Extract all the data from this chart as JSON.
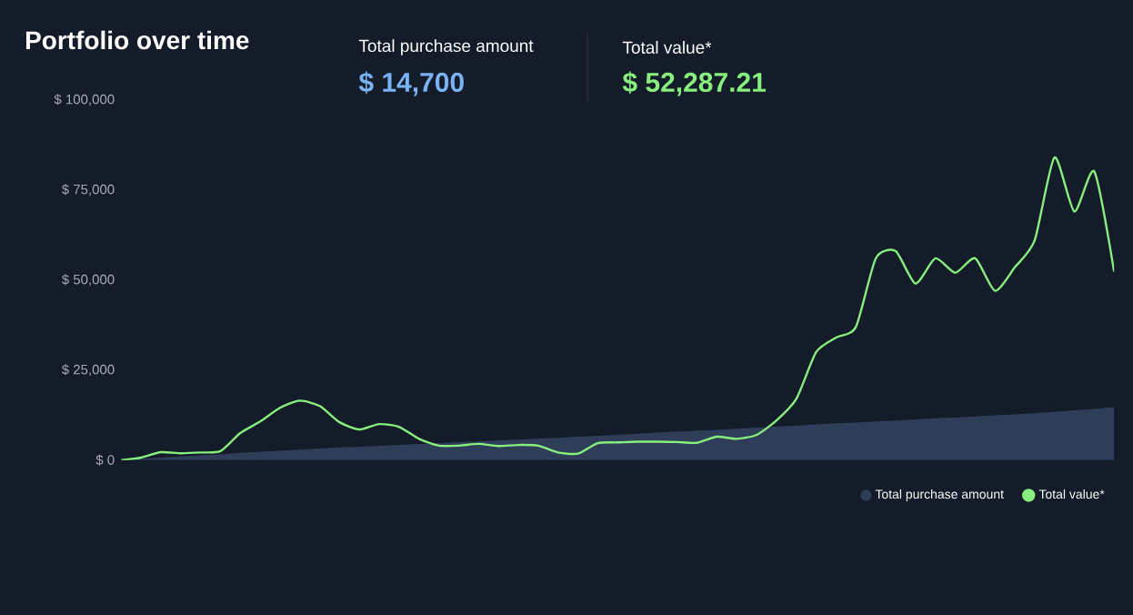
{
  "chart_data": {
    "type": "line",
    "title": "Portfolio over time",
    "annotations": [
      "Total purchase amount",
      "$ 14,700",
      "Total value*",
      "$ 52,287.21"
    ],
    "categories": [
      null,
      null,
      null,
      null,
      null,
      null,
      null,
      null,
      null,
      null,
      null,
      null,
      null,
      null,
      null,
      null,
      null,
      null,
      null,
      null,
      null,
      null,
      null,
      null,
      null,
      null,
      null,
      null,
      null,
      null,
      null,
      null,
      null,
      null,
      null,
      null,
      null,
      null,
      null,
      null,
      null,
      null,
      null,
      null,
      null,
      null,
      null,
      null,
      null,
      null,
      null
    ],
    "series": [
      {
        "name": "Total purchase amount",
        "type": "area",
        "color": "#2e3e58",
        "values": [
          0,
          400,
          700,
          1000,
          1300,
          1600,
          2000,
          2300,
          2600,
          2900,
          3200,
          3500,
          3700,
          4000,
          4200,
          4500,
          4700,
          5000,
          5200,
          5500,
          5700,
          6000,
          6200,
          6500,
          6700,
          7000,
          7300,
          7600,
          7900,
          8200,
          8400,
          8700,
          9000,
          9300,
          9600,
          9900,
          10200,
          10400,
          10700,
          11000,
          11300,
          11600,
          11800,
          12100,
          12400,
          12700,
          13000,
          13400,
          13800,
          14200,
          14700
        ]
      },
      {
        "name": "Total value*",
        "color": "#86ef7d",
        "values": [
          0,
          700,
          2200,
          1900,
          2100,
          2500,
          7500,
          10700,
          14500,
          16500,
          15000,
          10500,
          8500,
          10000,
          9200,
          5900,
          4000,
          4000,
          4500,
          3900,
          4200,
          4000,
          2100,
          1800,
          4700,
          4900,
          5100,
          5100,
          5000,
          4800,
          6500,
          5900,
          7000,
          11000,
          17000,
          30000,
          34000,
          37000,
          56000,
          58000,
          49000,
          56000,
          52000,
          56000,
          47000,
          53500,
          61000,
          84000,
          69000,
          80100,
          52300
        ]
      }
    ],
    "ylim": [
      0,
      100000
    ],
    "yticks": [
      {
        "value": 0,
        "label": "$ 0"
      },
      {
        "value": 25000,
        "label": "$ 25,000"
      },
      {
        "value": 50000,
        "label": "$ 50,000"
      },
      {
        "value": 75000,
        "label": "$ 75,000"
      },
      {
        "value": 100000,
        "label": "$ 100,000"
      }
    ],
    "tick_labels": "y",
    "grid": false,
    "legend": "bottom right",
    "marker": "none",
    "line_style": "solid"
  }
}
